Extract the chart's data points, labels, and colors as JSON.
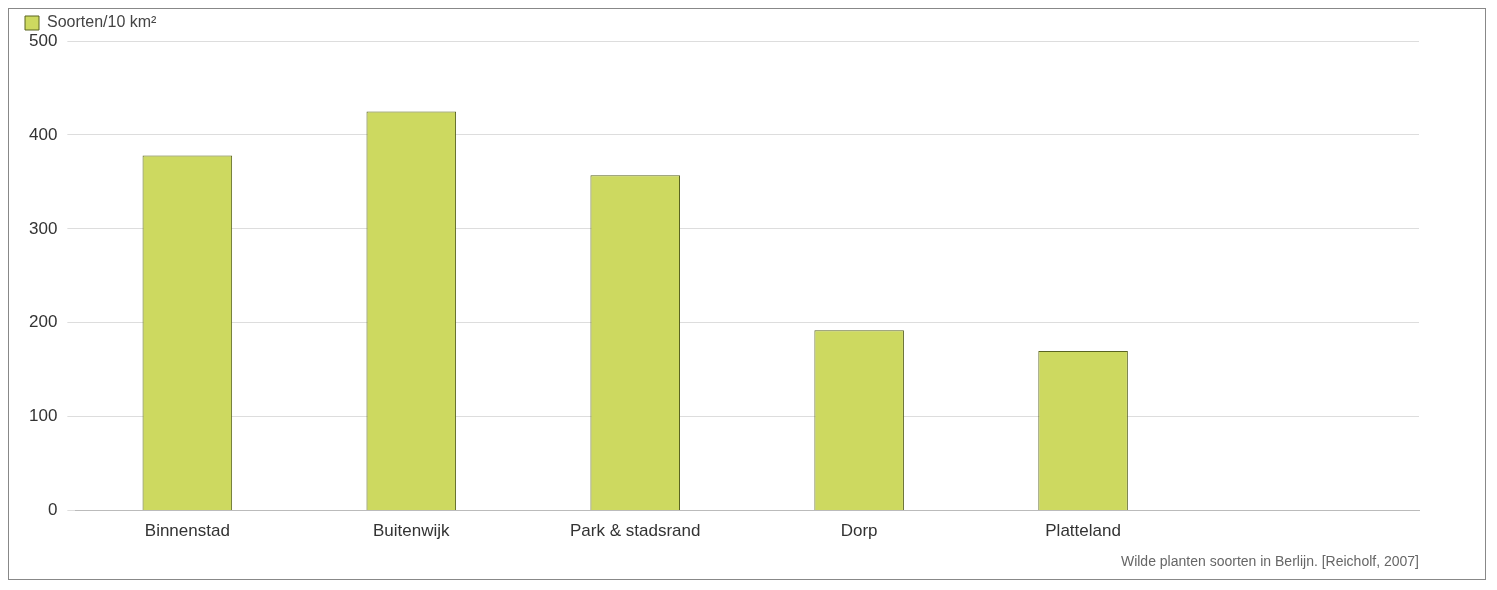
{
  "chart_data": {
    "type": "bar",
    "categories": [
      "Binnenstad",
      "Buitenwijk",
      "Park & stadsrand",
      "Dorp",
      "Platteland",
      null
    ],
    "series": [
      {
        "name": "Soorten/10 km²",
        "color": "#cdd960",
        "values": [
          378,
          425,
          357,
          192,
          170,
          null
        ]
      }
    ],
    "ylim": [
      0,
      500
    ],
    "yticks": [
      0,
      100,
      200,
      300,
      400,
      500
    ],
    "grid": "y",
    "legend": "top left",
    "annotations": [
      "Wilde planten soorten in Berlijn. [Reicholf, 2007]"
    ]
  }
}
